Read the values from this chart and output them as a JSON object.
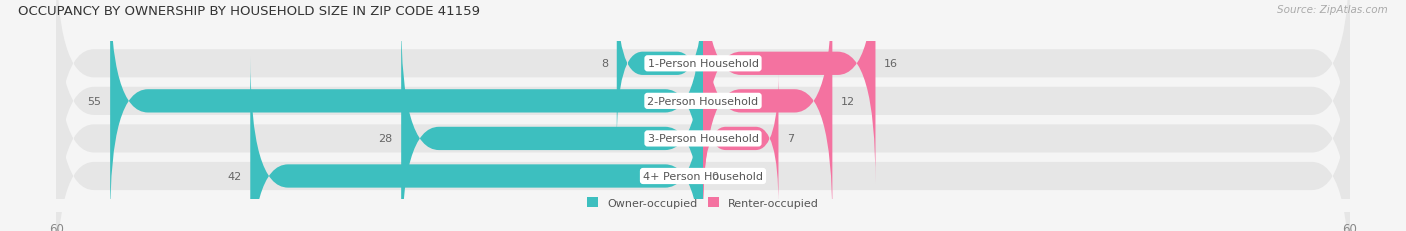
{
  "title": "OCCUPANCY BY OWNERSHIP BY HOUSEHOLD SIZE IN ZIP CODE 41159",
  "source": "Source: ZipAtlas.com",
  "categories": [
    "1-Person Household",
    "2-Person Household",
    "3-Person Household",
    "4+ Person Household"
  ],
  "owner_values": [
    8,
    55,
    28,
    42
  ],
  "renter_values": [
    16,
    12,
    7,
    0
  ],
  "owner_color": "#3DBFBF",
  "renter_color": "#F472A0",
  "axis_max": 60,
  "background_color": "#f5f5f5",
  "bar_bg_color": "#e6e6e6",
  "title_fontsize": 9.5,
  "label_fontsize": 8.0,
  "value_fontsize": 8.0,
  "tick_fontsize": 8.5,
  "source_fontsize": 7.5,
  "legend_fontsize": 8.0
}
